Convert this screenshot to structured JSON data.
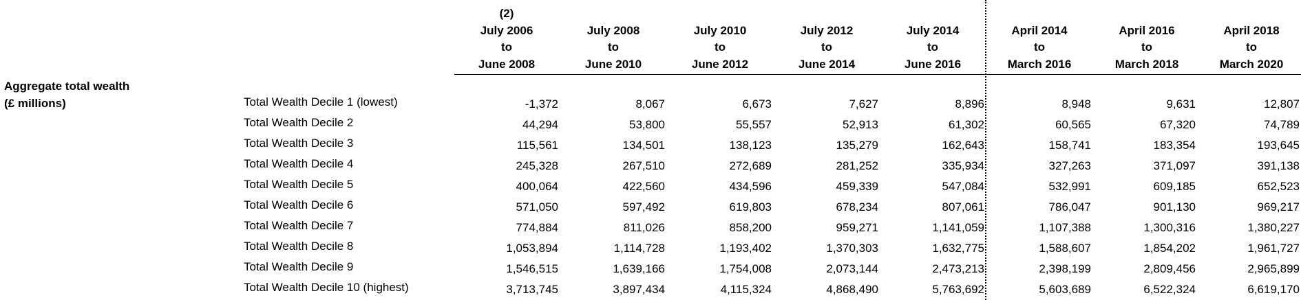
{
  "columns": [
    {
      "lines": [
        "(2)",
        "July 2006",
        "to",
        "June 2008"
      ]
    },
    {
      "lines": [
        "",
        "July 2008",
        "to",
        "June 2010"
      ]
    },
    {
      "lines": [
        "",
        "July 2010",
        "to",
        "June 2012"
      ]
    },
    {
      "lines": [
        "",
        "July 2012",
        "to",
        "June 2014"
      ]
    },
    {
      "lines": [
        "",
        "July 2014",
        "to",
        "June 2016"
      ]
    },
    {
      "lines": [
        "",
        "April 2014",
        "to",
        "March 2016"
      ]
    },
    {
      "lines": [
        "",
        "April 2016",
        "to",
        "March 2018"
      ]
    },
    {
      "lines": [
        "",
        "April 2018",
        "to",
        "March 2020"
      ]
    }
  ],
  "section": {
    "line1": "Aggregate total wealth",
    "line2": "(£ millions)"
  },
  "rows": [
    {
      "label": "Total Wealth Decile 1 (lowest)",
      "values": [
        "-1,372",
        "8,067",
        "6,673",
        "7,627",
        "8,896",
        "8,948",
        "9,631",
        "12,807"
      ]
    },
    {
      "label": "Total Wealth Decile 2",
      "values": [
        "44,294",
        "53,800",
        "55,557",
        "52,913",
        "61,302",
        "60,565",
        "67,320",
        "74,789"
      ]
    },
    {
      "label": "Total Wealth Decile 3",
      "values": [
        "115,561",
        "134,501",
        "138,123",
        "135,279",
        "162,643",
        "158,741",
        "183,354",
        "193,645"
      ]
    },
    {
      "label": "Total Wealth Decile 4",
      "values": [
        "245,328",
        "267,510",
        "272,689",
        "281,252",
        "335,934",
        "327,263",
        "371,097",
        "391,138"
      ]
    },
    {
      "label": "Total Wealth Decile 5",
      "values": [
        "400,064",
        "422,560",
        "434,596",
        "459,339",
        "547,084",
        "532,991",
        "609,185",
        "652,523"
      ]
    },
    {
      "label": "Total Wealth Decile 6",
      "values": [
        "571,050",
        "597,492",
        "619,803",
        "678,234",
        "807,061",
        "786,047",
        "901,130",
        "969,217"
      ]
    },
    {
      "label": "Total Wealth Decile 7",
      "values": [
        "774,884",
        "811,026",
        "858,200",
        "959,271",
        "1,141,059",
        "1,107,388",
        "1,300,316",
        "1,380,227"
      ]
    },
    {
      "label": "Total Wealth Decile 8",
      "values": [
        "1,053,894",
        "1,114,728",
        "1,193,402",
        "1,370,303",
        "1,632,775",
        "1,588,607",
        "1,854,202",
        "1,961,727"
      ]
    },
    {
      "label": "Total Wealth Decile 9",
      "values": [
        "1,546,515",
        "1,639,166",
        "1,754,008",
        "2,073,144",
        "2,473,213",
        "2,398,199",
        "2,809,456",
        "2,965,899"
      ]
    },
    {
      "label": "Total Wealth Decile 10 (highest)",
      "values": [
        "3,713,745",
        "3,897,434",
        "4,115,324",
        "4,868,490",
        "5,763,692",
        "5,603,689",
        "6,522,324",
        "6,619,170"
      ]
    }
  ]
}
